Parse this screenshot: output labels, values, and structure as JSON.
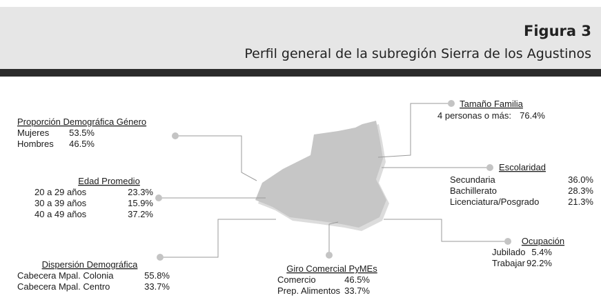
{
  "header": {
    "title": "Figura 3",
    "subtitle": "Perfil general de la subregión Sierra de los Agustinos"
  },
  "sections": [
    {
      "heading": "Proporción Demográfica Género",
      "rows": [
        {
          "label": "Mujeres",
          "value": "53.5%"
        },
        {
          "label": "Hombres",
          "value": "46.5%"
        }
      ]
    },
    {
      "heading": "Edad Promedio",
      "rows": [
        {
          "label": "20 a 29 años",
          "value": "23.3%"
        },
        {
          "label": "30 a 39 años",
          "value": "15.9%"
        },
        {
          "label": "40 a 49 años",
          "value": "37.2%"
        }
      ]
    },
    {
      "heading": "Dispersión Demográfica",
      "rows": [
        {
          "label": "Cabecera Mpal. Colonia",
          "value": "55.8%"
        },
        {
          "label": "Cabecera Mpal. Centro",
          "value": "33.7%"
        }
      ]
    },
    {
      "heading": "Giro Comercial PyMEs",
      "rows": [
        {
          "label": "Comercio",
          "value": "46.5%"
        },
        {
          "label": "Prep. Alimentos",
          "value": "33.7%"
        }
      ]
    },
    {
      "heading": "Tamaño Familia",
      "rows": [
        {
          "label": "4 personas o más:",
          "value": "76.4%"
        }
      ]
    },
    {
      "heading": "Escolaridad",
      "rows": [
        {
          "label": "Secundaria",
          "value": "36.0%"
        },
        {
          "label": "Bachillerato",
          "value": "28.3%"
        },
        {
          "label": "Licenciatura/Posgrado",
          "value": "21.3%"
        }
      ]
    },
    {
      "heading": "Ocupación",
      "rows": [
        {
          "label": "Jubilado",
          "value": "5.4%"
        },
        {
          "label": "Trabajar",
          "value": "92.2%"
        }
      ]
    }
  ]
}
